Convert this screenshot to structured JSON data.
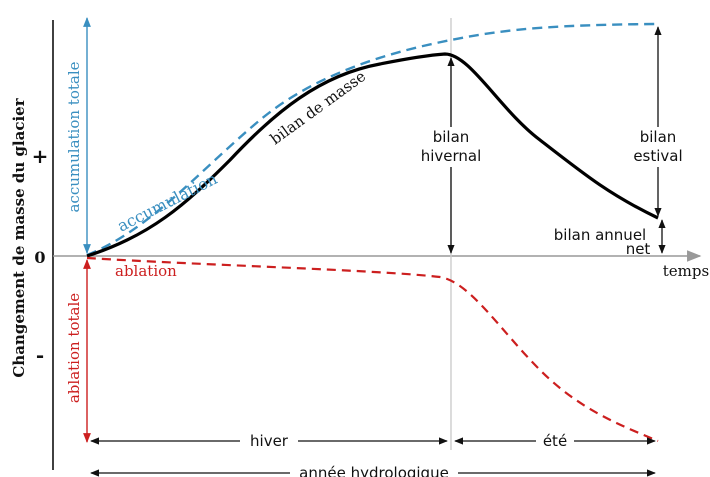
{
  "y_axis_label": "Changement de masse du glacier",
  "sign_plus": "+",
  "sign_zero": "0",
  "sign_minus": "-",
  "x_axis_label": "temps",
  "labels": {
    "accumulation_totale": "accumulation totale",
    "ablation_totale": "ablation totale",
    "accumulation": "accumulation",
    "ablation": "ablation",
    "bilan_de_masse": "bilan de masse",
    "bilan_hivernal_1": "bilan",
    "bilan_hivernal_2": "hivernal",
    "bilan_estival_1": "bilan",
    "bilan_estival_2": "estival",
    "bilan_annuel_1": "bilan annuel",
    "bilan_annuel_2": "net",
    "hiver": "hiver",
    "ete": "été",
    "annee_hydrologique": "année hydrologique"
  },
  "colors": {
    "accumulation": "#3a8fc0",
    "ablation": "#cc1f1f",
    "bilan": "#000000",
    "axis": "#999999"
  }
}
